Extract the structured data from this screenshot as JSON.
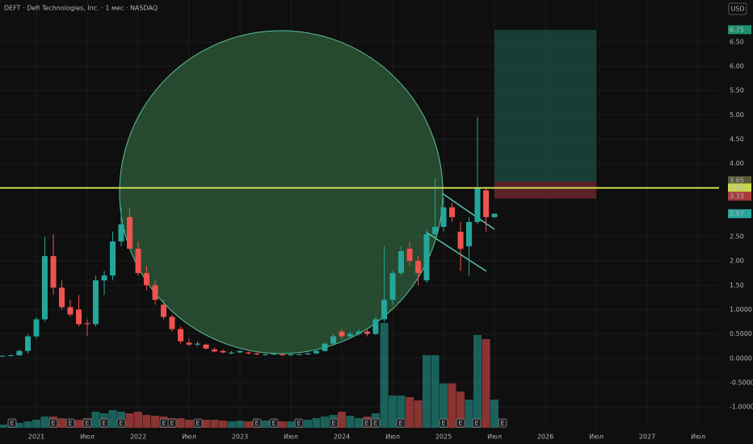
{
  "chart_data": {
    "type": "candlestick",
    "title": "DEFT · Defi Technologies, Inc. · 1 мес · NASDAQ",
    "currency": "USD",
    "up_color": "#26a69a",
    "down_color": "#ef5350",
    "x": [
      2020.667,
      2020.75,
      2020.833,
      2020.917,
      2021.0,
      2021.083,
      2021.167,
      2021.25,
      2021.333,
      2021.417,
      2021.5,
      2021.583,
      2021.667,
      2021.75,
      2021.833,
      2021.917,
      2022.0,
      2022.083,
      2022.167,
      2022.25,
      2022.333,
      2022.417,
      2022.5,
      2022.583,
      2022.667,
      2022.75,
      2022.833,
      2022.917,
      2023.0,
      2023.083,
      2023.167,
      2023.25,
      2023.333,
      2023.417,
      2023.5,
      2023.583,
      2023.667,
      2023.75,
      2023.833,
      2023.917,
      2024.0,
      2024.083,
      2024.167,
      2024.25,
      2024.333,
      2024.417,
      2024.5,
      2024.583,
      2024.667,
      2024.75,
      2024.833,
      2024.917,
      2025.0,
      2025.083,
      2025.167,
      2025.25,
      2025.333,
      2025.417,
      2025.5
    ],
    "open": [
      0.04,
      0.05,
      0.06,
      0.15,
      0.45,
      0.8,
      2.1,
      1.45,
      1.05,
      1.0,
      0.72,
      0.7,
      1.6,
      1.7,
      2.4,
      2.9,
      2.25,
      1.75,
      1.5,
      1.1,
      0.85,
      0.6,
      0.32,
      0.28,
      0.28,
      0.18,
      0.15,
      0.1,
      0.12,
      0.12,
      0.1,
      0.07,
      0.08,
      0.08,
      0.06,
      0.07,
      0.08,
      0.1,
      0.15,
      0.3,
      0.55,
      0.45,
      0.5,
      0.55,
      0.5,
      0.8,
      1.2,
      1.75,
      2.25,
      2.0,
      1.6,
      2.55,
      2.7,
      3.1,
      2.6,
      2.3,
      2.8,
      3.45,
      2.9
    ],
    "high": [
      0.06,
      0.08,
      0.18,
      0.5,
      0.85,
      2.5,
      2.55,
      1.6,
      1.2,
      1.3,
      0.8,
      1.7,
      1.8,
      2.6,
      3.1,
      3.1,
      2.4,
      1.9,
      1.6,
      1.2,
      0.9,
      0.65,
      0.4,
      0.35,
      0.3,
      0.22,
      0.18,
      0.15,
      0.17,
      0.14,
      0.12,
      0.1,
      0.1,
      0.09,
      0.1,
      0.1,
      0.12,
      0.18,
      0.32,
      0.5,
      0.6,
      0.55,
      0.6,
      0.6,
      0.85,
      2.3,
      1.8,
      2.3,
      2.4,
      2.1,
      2.65,
      3.7,
      3.3,
      3.2,
      2.8,
      2.9,
      4.95,
      3.5,
      2.97
    ],
    "low": [
      0.03,
      0.04,
      0.05,
      0.1,
      0.4,
      0.75,
      1.3,
      1.0,
      0.85,
      0.65,
      0.45,
      0.65,
      1.3,
      1.6,
      2.3,
      2.3,
      1.7,
      1.4,
      1.1,
      0.8,
      0.55,
      0.3,
      0.25,
      0.24,
      0.18,
      0.12,
      0.1,
      0.08,
      0.1,
      0.08,
      0.06,
      0.05,
      0.06,
      0.05,
      0.05,
      0.06,
      0.07,
      0.09,
      0.14,
      0.28,
      0.4,
      0.42,
      0.47,
      0.45,
      0.48,
      0.75,
      1.1,
      1.7,
      1.9,
      1.5,
      1.55,
      2.5,
      2.6,
      2.8,
      1.8,
      1.7,
      2.75,
      2.6,
      2.88
    ],
    "close": [
      0.05,
      0.06,
      0.15,
      0.45,
      0.8,
      2.1,
      1.45,
      1.05,
      0.9,
      0.7,
      0.7,
      1.6,
      1.7,
      2.4,
      2.75,
      2.25,
      1.75,
      1.5,
      1.2,
      0.85,
      0.6,
      0.35,
      0.28,
      0.3,
      0.2,
      0.14,
      0.12,
      0.12,
      0.15,
      0.1,
      0.08,
      0.08,
      0.09,
      0.06,
      0.08,
      0.08,
      0.1,
      0.15,
      0.3,
      0.45,
      0.45,
      0.5,
      0.55,
      0.5,
      0.8,
      1.2,
      1.75,
      2.2,
      2.0,
      1.75,
      2.55,
      2.7,
      3.1,
      2.9,
      2.25,
      2.8,
      3.5,
      2.9,
      2.97
    ],
    "volume": [
      4,
      5,
      6,
      8,
      10,
      14,
      14,
      12,
      10,
      10,
      12,
      20,
      18,
      22,
      20,
      18,
      20,
      16,
      15,
      14,
      12,
      12,
      10,
      10,
      10,
      10,
      9,
      8,
      9,
      8,
      8,
      9,
      8,
      8,
      8,
      9,
      10,
      12,
      14,
      16,
      20,
      15,
      12,
      14,
      18,
      130,
      40,
      40,
      38,
      34,
      90,
      90,
      55,
      55,
      45,
      35,
      115,
      110,
      35
    ],
    "xlim": [
      2020.643,
      2027.706
    ],
    "ylim": [
      -1.43,
      7.36
    ],
    "xticks": [
      2021,
      {
        "value": 2021.5,
        "label": "Июл"
      },
      2022,
      {
        "value": 2022.5,
        "label": "Июл"
      },
      2023,
      {
        "value": 2023.5,
        "label": "Июл"
      },
      2024,
      {
        "value": 2024.5,
        "label": "Июл"
      },
      2025,
      {
        "value": 2025.5,
        "label": "Июл"
      },
      2026,
      {
        "value": 2026.5,
        "label": "Июл"
      },
      2027,
      {
        "value": 2027.5,
        "label": "Июл"
      }
    ],
    "yticks": [
      {
        "value": 6.5,
        "label": "6.50"
      },
      {
        "value": 6,
        "label": "6.00"
      },
      {
        "value": 5.5,
        "label": "5.50"
      },
      {
        "value": 5,
        "label": "5.00"
      },
      {
        "value": 4.5,
        "label": "4.50"
      },
      {
        "value": 4,
        "label": "4.00"
      },
      {
        "value": 2.5,
        "label": "2.50"
      },
      {
        "value": 2,
        "label": "2.00"
      },
      {
        "value": 1.5,
        "label": "1.50"
      },
      {
        "value": 1,
        "label": "1.0000"
      },
      {
        "value": 0.5,
        "label": "0.5000"
      },
      {
        "value": 0,
        "label": "0.0000"
      },
      {
        "value": -0.5,
        "label": "-0.5000"
      },
      {
        "value": -1,
        "label": "-1.0000"
      }
    ],
    "grid": true,
    "price_tags": [
      {
        "value": 6.75,
        "label": "6.75",
        "color": "#1e8f6e"
      },
      {
        "value": 3.65,
        "label": "3.65",
        "color": "#5a5a3a"
      },
      {
        "value": 3.5,
        "label": "3.50",
        "color": "#c8d84a"
      },
      {
        "value": 3.33,
        "label": "3.33",
        "color": "#a83a3a"
      },
      {
        "value": 2.97,
        "label": "2.97",
        "color": "#26a69a"
      }
    ],
    "earnings_label": "E"
  }
}
